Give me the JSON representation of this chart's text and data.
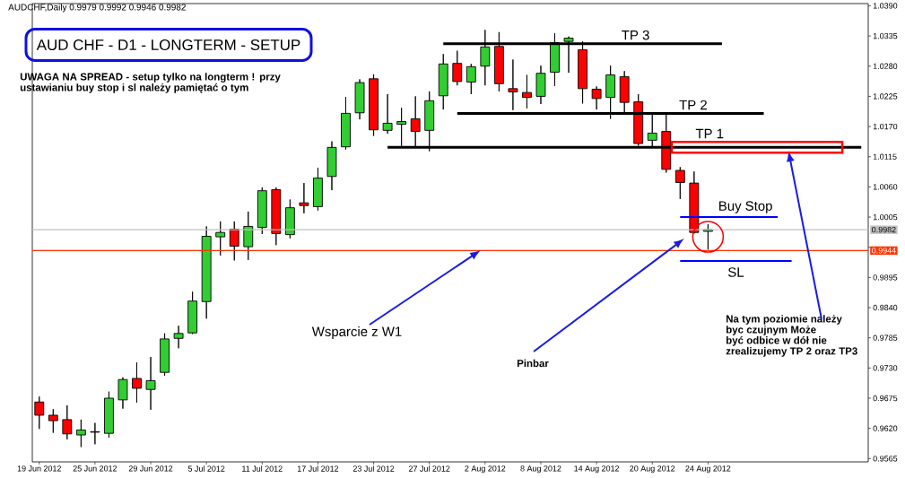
{
  "chart_data": {
    "type": "candlestick",
    "title": "AUD CHF - D1 - LONGTERM - SETUP",
    "categories": [
      "19 Jun 2012",
      null,
      null,
      null,
      "25 Jun 2012",
      null,
      null,
      null,
      "29 Jun 2012",
      null,
      null,
      null,
      "5 Jul 2012",
      null,
      null,
      null,
      "11 Jul 2012",
      null,
      null,
      null,
      "17 Jul 2012",
      null,
      null,
      null,
      "23 Jul 2012",
      null,
      null,
      null,
      "27 Jul 2012",
      null,
      null,
      null,
      "2 Aug 2012",
      null,
      null,
      null,
      "8 Aug 2012",
      null,
      null,
      null,
      "14 Aug 2012",
      null,
      null,
      null,
      "20 Aug 2012",
      null,
      null,
      null,
      "24 Aug 2012",
      null,
      null,
      null,
      null,
      null,
      null,
      null,
      null,
      null,
      null,
      null
    ],
    "ohlc": [
      [
        0.9668,
        0.9678,
        0.9619,
        0.9644
      ],
      [
        0.9644,
        0.9655,
        0.9612,
        0.9634
      ],
      [
        0.9636,
        0.9662,
        0.96,
        0.961
      ],
      [
        0.9608,
        0.9636,
        0.9586,
        0.9617
      ],
      [
        0.9613,
        0.963,
        0.9591,
        0.9614
      ],
      [
        0.9611,
        0.9687,
        0.9603,
        0.9675
      ],
      [
        0.9672,
        0.9713,
        0.9656,
        0.9709
      ],
      [
        0.9711,
        0.974,
        0.9667,
        0.9693
      ],
      [
        0.9691,
        0.975,
        0.9654,
        0.9707
      ],
      [
        0.9722,
        0.9793,
        0.9716,
        0.9783
      ],
      [
        0.9784,
        0.9807,
        0.9766,
        0.9793
      ],
      [
        0.9794,
        0.9869,
        0.9792,
        0.9852
      ],
      [
        0.9851,
        0.9988,
        0.982,
        0.997
      ],
      [
        0.9969,
        0.9997,
        0.9935,
        0.9977
      ],
      [
        0.9983,
        0.9997,
        0.9926,
        0.9952
      ],
      [
        0.9951,
        1.0015,
        0.9927,
        0.9988
      ],
      [
        0.9986,
        1.0059,
        0.9974,
        1.0053
      ],
      [
        1.0055,
        1.0059,
        0.9954,
        0.9975
      ],
      [
        0.9973,
        1.0037,
        0.9966,
        1.0022
      ],
      [
        1.0031,
        1.0067,
        1.0012,
        1.0026
      ],
      [
        1.0024,
        1.0095,
        1.0017,
        1.0076
      ],
      [
        1.0079,
        1.0143,
        1.0054,
        1.0132
      ],
      [
        1.0133,
        1.0224,
        1.0128,
        1.0194
      ],
      [
        1.0195,
        1.0256,
        1.0183,
        1.025
      ],
      [
        1.0257,
        1.0265,
        1.0153,
        1.0164
      ],
      [
        1.0163,
        1.0229,
        1.0157,
        1.0176
      ],
      [
        1.0174,
        1.0204,
        1.0133,
        1.0179
      ],
      [
        1.0184,
        1.0225,
        1.0133,
        1.0161
      ],
      [
        1.0163,
        1.0234,
        1.0125,
        1.0217
      ],
      [
        1.0226,
        1.0302,
        1.0201,
        1.0284
      ],
      [
        1.0285,
        1.0308,
        1.0245,
        1.0252
      ],
      [
        1.0251,
        1.0284,
        1.0229,
        1.0279
      ],
      [
        1.028,
        1.0346,
        1.0245,
        1.0315
      ],
      [
        1.0316,
        1.0342,
        1.0234,
        1.0248
      ],
      [
        1.0239,
        1.0292,
        1.02,
        1.0233
      ],
      [
        1.0232,
        1.0264,
        1.0203,
        1.0223
      ],
      [
        1.0225,
        1.0281,
        1.0211,
        1.0267
      ],
      [
        1.0269,
        1.034,
        1.0244,
        1.0323
      ],
      [
        1.0325,
        1.0334,
        1.0268,
        1.0331
      ],
      [
        1.031,
        1.0325,
        1.0212,
        1.0239
      ],
      [
        1.0238,
        1.0243,
        1.0201,
        1.0221
      ],
      [
        1.0223,
        1.0281,
        1.0184,
        1.0264
      ],
      [
        1.0261,
        1.0271,
        1.0196,
        1.0214
      ],
      [
        1.0215,
        1.0229,
        1.0135,
        1.0139
      ],
      [
        1.0145,
        1.0192,
        1.0133,
        1.0158
      ],
      [
        1.0161,
        1.0192,
        1.0086,
        1.0092
      ],
      [
        1.009,
        1.0096,
        1.0038,
        1.0068
      ],
      [
        1.0067,
        1.0088,
        0.9975,
        0.9977
      ],
      [
        0.9979,
        0.9992,
        0.9946,
        0.9982
      ],
      null,
      null,
      null,
      null,
      null,
      null,
      null,
      null,
      null,
      null,
      null
    ],
    "colors": [
      "#ff0000",
      "#ff0000",
      "#ff0000",
      "#32cd32",
      "#32cd32",
      "#32cd32",
      "#32cd32",
      "#ff0000",
      "#32cd32",
      "#32cd32",
      "#32cd32",
      "#32cd32",
      "#32cd32",
      "#32cd32",
      "#ff0000",
      "#32cd32",
      "#32cd32",
      "#ff0000",
      "#32cd32",
      "#ff0000",
      "#32cd32",
      "#32cd32",
      "#32cd32",
      "#32cd32",
      "#ff0000",
      "#32cd32",
      "#32cd32",
      "#ff0000",
      "#32cd32",
      "#32cd32",
      "#ff0000",
      "#32cd32",
      "#32cd32",
      "#ff0000",
      "#ff0000",
      "#ff0000",
      "#32cd32",
      "#32cd32",
      "#32cd32",
      "#ff0000",
      "#ff0000",
      "#32cd32",
      "#ff0000",
      "#ff0000",
      "#32cd32",
      "#ff0000",
      "#ff0000",
      "#ff0000",
      "#32cd32",
      null,
      null,
      null,
      null,
      null,
      null,
      null,
      null,
      null,
      null,
      null
    ],
    "series": [
      {
        "type": "line",
        "name": "TP 3",
        "color": "#000000",
        "values": [
          null,
          null,
          null,
          null,
          null,
          null,
          null,
          null,
          null,
          null,
          null,
          null,
          null,
          null,
          null,
          null,
          null,
          null,
          null,
          null,
          null,
          null,
          null,
          null,
          null,
          null,
          null,
          null,
          null,
          1.0321,
          1.0321,
          1.0321,
          1.0321,
          1.0321,
          1.0321,
          1.0321,
          1.0321,
          1.0321,
          1.0321,
          1.0321,
          1.0321,
          1.0321,
          1.0321,
          1.0321,
          1.0321,
          1.0321,
          1.0321,
          1.0321,
          1.0321,
          1.0321,
          null,
          null,
          null,
          null,
          null,
          null,
          null,
          null,
          null,
          null
        ]
      },
      {
        "type": "line",
        "name": "TP 2",
        "color": "#000000",
        "values": [
          null,
          null,
          null,
          null,
          null,
          null,
          null,
          null,
          null,
          null,
          null,
          null,
          null,
          null,
          null,
          null,
          null,
          null,
          null,
          null,
          null,
          null,
          null,
          null,
          null,
          null,
          null,
          null,
          null,
          null,
          1.0194,
          1.0194,
          1.0194,
          1.0194,
          1.0194,
          1.0194,
          1.0194,
          1.0194,
          1.0194,
          1.0194,
          1.0194,
          1.0194,
          1.0194,
          1.0194,
          1.0194,
          1.0194,
          1.0194,
          1.0194,
          1.0194,
          1.0194,
          1.0194,
          1.0194,
          1.0194,
          null,
          null,
          null,
          null,
          null,
          null,
          null
        ]
      },
      {
        "type": "line",
        "name": "TP 1",
        "color": "#000000",
        "values": [
          null,
          null,
          null,
          null,
          null,
          null,
          null,
          null,
          null,
          null,
          null,
          null,
          null,
          null,
          null,
          null,
          null,
          null,
          null,
          null,
          null,
          null,
          null,
          null,
          null,
          1.0132,
          1.0132,
          1.0132,
          1.0132,
          1.0132,
          1.0132,
          1.0132,
          1.0132,
          1.0132,
          1.0132,
          1.0132,
          1.0132,
          1.0132,
          1.0132,
          1.0132,
          1.0132,
          1.0132,
          1.0132,
          1.0132,
          1.0132,
          1.0132,
          1.0132,
          1.0132,
          1.0132,
          1.0132,
          1.0132,
          1.0132,
          1.0132,
          1.0132,
          1.0132,
          1.0132,
          1.0132,
          1.0132,
          1.0132,
          1.0132
        ]
      },
      {
        "type": "line",
        "name": "Buy Stop",
        "color": "#0000ff",
        "values": [
          null,
          null,
          null,
          null,
          null,
          null,
          null,
          null,
          null,
          null,
          null,
          null,
          null,
          null,
          null,
          null,
          null,
          null,
          null,
          null,
          null,
          null,
          null,
          null,
          null,
          null,
          null,
          null,
          null,
          null,
          null,
          null,
          null,
          null,
          null,
          null,
          null,
          null,
          null,
          null,
          null,
          null,
          null,
          null,
          null,
          null,
          1.0005,
          1.0005,
          1.0005,
          1.0005,
          1.0005,
          1.0005,
          1.0005,
          1.0005,
          null,
          null,
          null,
          null,
          null,
          null
        ]
      },
      {
        "type": "line",
        "name": "SL",
        "color": "#0000ff",
        "values": [
          null,
          null,
          null,
          null,
          null,
          null,
          null,
          null,
          null,
          null,
          null,
          null,
          null,
          null,
          null,
          null,
          null,
          null,
          null,
          null,
          null,
          null,
          null,
          null,
          null,
          null,
          null,
          null,
          null,
          null,
          null,
          null,
          null,
          null,
          null,
          null,
          null,
          null,
          null,
          null,
          null,
          null,
          null,
          null,
          null,
          null,
          0.9925,
          0.9925,
          0.9925,
          0.9925,
          0.9925,
          0.9925,
          0.9925,
          0.9925,
          0.9925,
          null,
          null,
          null,
          null,
          null
        ]
      }
    ],
    "ref_lines": [
      {
        "axis": "y",
        "value": 0.9944,
        "label": "0.9944",
        "color": "#ff3300"
      },
      {
        "axis": "y",
        "value": 0.9982,
        "label": "0.9982",
        "color": "#c0c0c0"
      }
    ],
    "annotations": [
      "AUDCHF,Daily  0.9979 0.9992 0.9946 0.9982",
      "UWAGA NA SPREAD - setup tylko na longterm ! przy ustawianiu buy stop i sl należy pamiętać o tym",
      "Wsparcie z W1",
      "Pinbar",
      "Na tym poziomie należy byc czujnym Może być odbice w dół nie zrealizujemy TP 2 oraz TP3"
    ],
    "ylim": [
      0.9559,
      1.0394
    ],
    "yticks": [
      0.9565,
      {
        "value": 0.962,
        "label": "0.9620"
      },
      0.9675,
      {
        "value": 0.973,
        "label": "0.9730"
      },
      0.9785,
      {
        "value": 0.984,
        "label": "0.9840"
      },
      0.9895,
      {
        "value": 0.995,
        "label": null
      },
      1.0005,
      {
        "value": 1.006,
        "label": "1.0060"
      },
      1.0115,
      {
        "value": 1.017,
        "label": "1.0170"
      },
      1.0225,
      {
        "value": 1.028,
        "label": "1.0280"
      },
      1.0335,
      {
        "value": 1.039,
        "label": "1.0390"
      }
    ]
  }
}
